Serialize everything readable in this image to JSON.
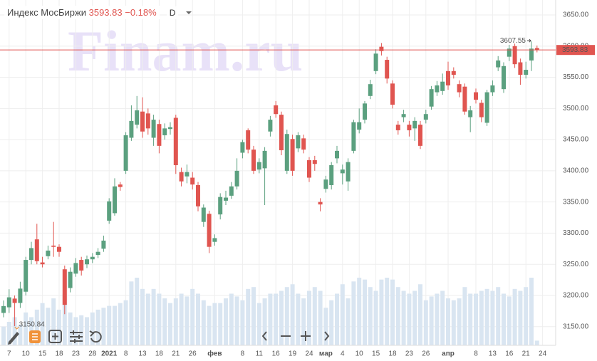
{
  "chart_data": {
    "type": "candlestick",
    "title": "Индекс МосБиржи",
    "change": "−0.18%",
    "timeframe": "D",
    "watermark": "Finam.ru",
    "categories": [
      null,
      "7",
      null,
      null,
      "10",
      null,
      null,
      "15",
      null,
      null,
      "18",
      null,
      null,
      "23",
      null,
      null,
      "28",
      null,
      null,
      "2021",
      null,
      null,
      "8",
      null,
      null,
      "13",
      null,
      null,
      "18",
      null,
      null,
      "21",
      null,
      null,
      "26",
      null,
      null,
      null,
      "фев",
      null,
      null,
      null,
      null,
      "8",
      null,
      null,
      "11",
      null,
      null,
      "16",
      null,
      null,
      "19",
      null,
      null,
      "24",
      null,
      null,
      "мар",
      null,
      null,
      "4",
      null,
      null,
      "10",
      null,
      null,
      "15",
      null,
      null,
      "18",
      null,
      null,
      "23",
      null,
      null,
      "26",
      null,
      null,
      null,
      "апр",
      null,
      null,
      null,
      null,
      "8",
      null,
      null,
      "13",
      null,
      null,
      "16",
      null,
      null,
      "21",
      null,
      null,
      "24"
    ],
    "open": [
      3172,
      3181,
      3195,
      3188,
      3206,
      3257,
      3290,
      3253,
      3263,
      3280,
      3278,
      3242,
      3212,
      3235,
      3257,
      3250,
      3258,
      3265,
      3275,
      3320,
      3332,
      3378,
      3400,
      3453,
      3474,
      3495,
      3492,
      3453,
      3475,
      3457,
      3467,
      3485,
      3398,
      3391,
      3389,
      3377,
      3318,
      3331,
      3286,
      3330,
      3352,
      3360,
      3375,
      3429,
      3465,
      3434,
      3402,
      3404,
      3463,
      3505,
      3490,
      3400,
      3451,
      3436,
      3452,
      3417,
      3417,
      3350,
      3371,
      3377,
      3420,
      3396,
      3383,
      3432,
      3466,
      3482,
      3520,
      3560,
      3599,
      3578,
      3540,
      3474,
      3486,
      3474,
      3468,
      3474,
      3482,
      3503,
      3526,
      3528,
      3560,
      3560,
      3539,
      3535,
      3486,
      3526,
      3509,
      3477,
      3526,
      3566,
      3531,
      3583,
      3600,
      3574,
      3554,
      3577,
      3597,
      null
    ],
    "high": [
      3192,
      3210,
      3200,
      3222,
      3262,
      3286,
      3315,
      3262,
      3280,
      3318,
      3282,
      3248,
      3245,
      3260,
      3262,
      3264,
      3268,
      3276,
      3296,
      3356,
      3388,
      3382,
      3462,
      3505,
      3520,
      3518,
      3500,
      3490,
      3482,
      3476,
      3478,
      3490,
      3405,
      3410,
      3398,
      3382,
      3346,
      3336,
      3298,
      3364,
      3368,
      3382,
      3420,
      3450,
      3468,
      3440,
      3420,
      3438,
      3488,
      3512,
      3495,
      3466,
      3458,
      3462,
      3458,
      3422,
      3424,
      3356,
      3392,
      3414,
      3440,
      3410,
      3420,
      3482,
      3500,
      3512,
      3546,
      3595,
      3605,
      3583,
      3545,
      3480,
      3498,
      3480,
      3486,
      3480,
      3498,
      3536,
      3544,
      3556,
      3575,
      3566,
      3545,
      3540,
      3504,
      3532,
      3514,
      3530,
      3545,
      3584,
      3574,
      3602,
      3604,
      3580,
      3575,
      3607.55,
      3601,
      null
    ],
    "low": [
      3165,
      3172,
      3150.84,
      3180,
      3200,
      3250,
      3250,
      3245,
      3258,
      3262,
      3262,
      3170,
      3205,
      3230,
      3232,
      3244,
      3252,
      3260,
      3270,
      3315,
      3328,
      3368,
      3395,
      3448,
      3468,
      3453,
      3458,
      3440,
      3428,
      3450,
      3458,
      3395,
      3375,
      3380,
      3370,
      3335,
      3310,
      3268,
      3280,
      3322,
      3345,
      3355,
      3370,
      3420,
      3428,
      3395,
      3396,
      3345,
      3455,
      3485,
      3425,
      3395,
      3392,
      3430,
      3428,
      3382,
      3400,
      3335,
      3365,
      3370,
      3412,
      3378,
      3368,
      3428,
      3460,
      3476,
      3515,
      3555,
      3585,
      3540,
      3500,
      3458,
      3478,
      3455,
      3448,
      3435,
      3476,
      3498,
      3520,
      3522,
      3530,
      3548,
      3518,
      3490,
      3462,
      3508,
      3478,
      3472,
      3520,
      3560,
      3525,
      3576,
      3565,
      3538,
      3548,
      3560,
      3590,
      null
    ],
    "close": [
      3183,
      3197,
      3188,
      3211,
      3257,
      3276,
      3255,
      3250,
      3272,
      3278,
      3270,
      3185,
      3238,
      3252,
      3240,
      3258,
      3262,
      3270,
      3288,
      3351,
      3375,
      3374,
      3457,
      3480,
      3497,
      3463,
      3468,
      3482,
      3440,
      3468,
      3470,
      3409,
      3383,
      3398,
      3378,
      3343,
      3341,
      3278,
      3292,
      3358,
      3357,
      3375,
      3400,
      3446,
      3434,
      3400,
      3414,
      3432,
      3482,
      3491,
      3433,
      3459,
      3400,
      3457,
      3434,
      3389,
      3411,
      3346,
      3386,
      3409,
      3432,
      3402,
      3414,
      3478,
      3478,
      3508,
      3539,
      3588,
      3592,
      3548,
      3506,
      3465,
      3491,
      3465,
      3480,
      3440,
      3491,
      3531,
      3537,
      3543,
      3537,
      3554,
      3526,
      3495,
      3497,
      3514,
      3486,
      3526,
      3537,
      3577,
      3568,
      3596,
      3571,
      3554,
      3562,
      3596,
      3593.83,
      null
    ],
    "volume": [
      20,
      25,
      30,
      22,
      35,
      30,
      38,
      45,
      40,
      50,
      38,
      55,
      35,
      30,
      32,
      30,
      35,
      38,
      40,
      42,
      42,
      45,
      48,
      68,
      72,
      60,
      55,
      60,
      55,
      50,
      45,
      50,
      55,
      52,
      60,
      55,
      48,
      42,
      45,
      45,
      50,
      55,
      52,
      48,
      60,
      62,
      45,
      50,
      55,
      55,
      58,
      62,
      65,
      55,
      50,
      58,
      62,
      58,
      40,
      48,
      55,
      65,
      50,
      68,
      72,
      70,
      62,
      58,
      70,
      72,
      70,
      62,
      58,
      55,
      58,
      65,
      48,
      52,
      55,
      58,
      50,
      48,
      50,
      62,
      55,
      55,
      58,
      60,
      58,
      62,
      55,
      52,
      60,
      58,
      62,
      72,
      5,
      null
    ],
    "up_color": "#5ba07f",
    "down_color": "#e05550",
    "volume_color": "#d9e5f1",
    "ylim": [
      3120,
      3674
    ],
    "yticks": [
      {
        "value": 3150,
        "label": "3150.00"
      },
      {
        "value": 3200,
        "label": "3200.00"
      },
      {
        "value": 3250,
        "label": "3250.00"
      },
      {
        "value": 3300,
        "label": "3300.00"
      },
      {
        "value": 3350,
        "label": "3350.00"
      },
      {
        "value": 3400,
        "label": "3400.00"
      },
      {
        "value": 3450,
        "label": "3450.00"
      },
      {
        "value": 3500,
        "label": "3500.00"
      },
      {
        "value": 3550,
        "label": "3550.00"
      },
      {
        "value": 3600,
        "label": "3600.00"
      },
      {
        "value": 3650,
        "label": "3650.00"
      }
    ],
    "grid": true
  }
}
